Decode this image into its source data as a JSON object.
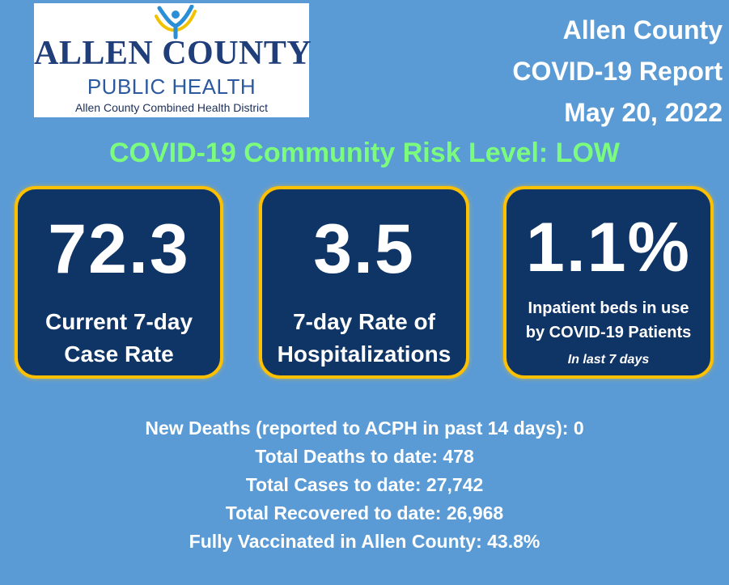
{
  "logo": {
    "title": "ALLEN COUNTY",
    "subtitle": "PUBLIC HEALTH",
    "tagline": "Allen County Combined Health District",
    "icon": "person-arms-raised-icon"
  },
  "report": {
    "line1": "Allen County",
    "line2": "COVID-19 Report",
    "date": "May 20, 2022"
  },
  "risk_level": "COVID-19 Community Risk Level: LOW",
  "cards": [
    {
      "value": "72.3",
      "label_line1": "Current 7-day",
      "label_line2": "Case Rate"
    },
    {
      "value": "3.5",
      "label_line1": "7-day Rate of",
      "label_line2": "Hospitalizations"
    },
    {
      "value": "1.1%",
      "label_line1": "Inpatient beds in use",
      "label_line2": "by COVID-19 Patients",
      "note": "In last  7 days"
    }
  ],
  "stats": {
    "new_deaths": "New Deaths (reported to ACPH in past 14 days): 0",
    "total_deaths": "Total Deaths to date: 478",
    "total_cases": "Total Cases to date: 27,742",
    "total_recovered": "Total Recovered to date: 26,968",
    "vaccinated": "Fully Vaccinated in Allen County: 43.8%"
  },
  "colors": {
    "background": "#5b9bd5",
    "card_fill": "#0f3466",
    "card_border": "#ffc000",
    "risk_text": "#7cfc7c",
    "logo_navy": "#1f3e7a",
    "logo_blue": "#2c5aa0"
  }
}
